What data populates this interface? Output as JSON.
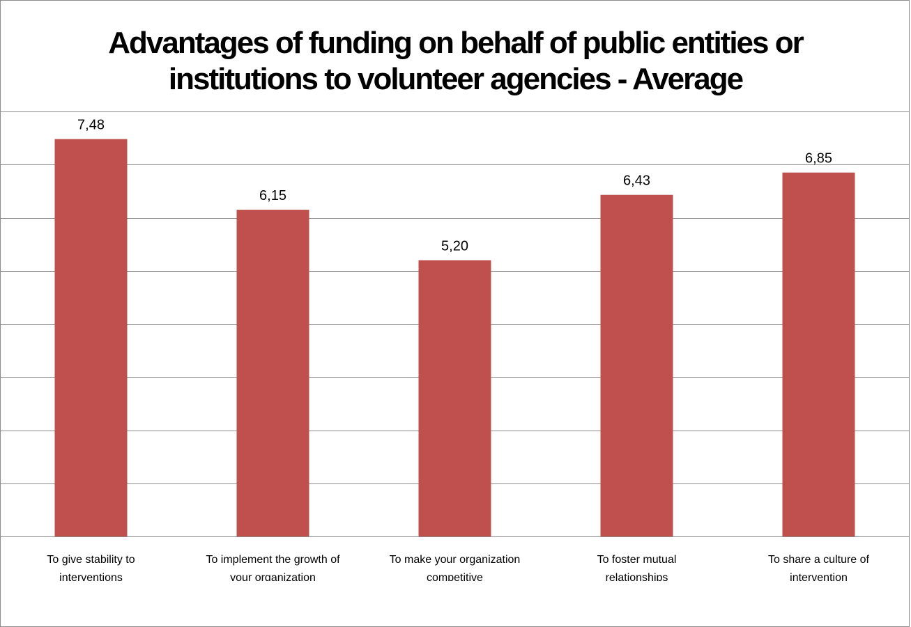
{
  "chart_data": {
    "type": "bar",
    "title": "Advantages of funding on behalf of public entities or institutions to volunteer agencies - Average",
    "categories": [
      [
        "To give stability to",
        "interventions"
      ],
      [
        "To implement the growth of",
        "your organization"
      ],
      [
        "To make your organization",
        "competitive"
      ],
      [
        "To foster mutual",
        "relationships"
      ],
      [
        "To share a culture of",
        "intervention"
      ]
    ],
    "values": [
      7.48,
      6.15,
      5.2,
      6.43,
      6.85
    ],
    "value_labels": [
      "7,48",
      "6,15",
      "5,20",
      "6,43",
      "6,85"
    ],
    "ylim": [
      0,
      8
    ],
    "grid": true,
    "legend": "none",
    "bar_color": "#c0504d",
    "grid_color": "#8c8c8c"
  }
}
